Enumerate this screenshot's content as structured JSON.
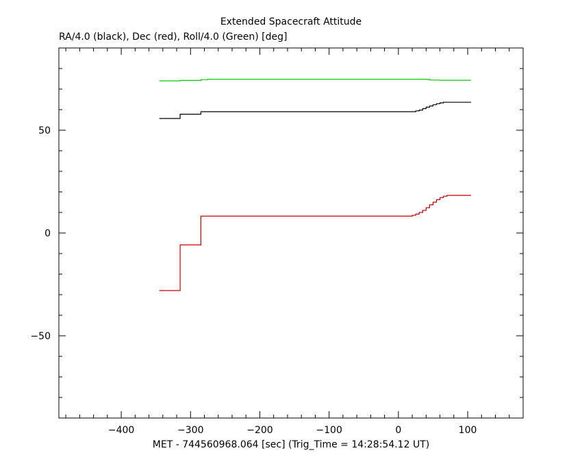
{
  "chart_data": {
    "type": "line",
    "title": "Extended Spacecraft Attitude",
    "subtitle": "RA/4.0 (black), Dec (red), Roll/4.0 (Green) [deg]",
    "xlabel": "MET - 744560968.064 [sec] (Trig_Time = 14:28:54.12 UT)",
    "ylabel": "",
    "xlim": [
      -490,
      180
    ],
    "ylim": [
      -90,
      90
    ],
    "xticks": [
      -400,
      -300,
      -200,
      -100,
      0,
      100
    ],
    "yticks": [
      -50,
      0,
      50
    ],
    "xtick_labels": [
      "−400",
      "−300",
      "−200",
      "−100",
      "0",
      "100"
    ],
    "ytick_labels": [
      "−50",
      "0",
      "50"
    ],
    "x_minor_step": 20,
    "y_minor_step": 10,
    "grid": false,
    "step_lines": true,
    "series": [
      {
        "color": "#00cc00",
        "points": [
          [
            -345,
            74.0
          ],
          [
            -315,
            74.2
          ],
          [
            -285,
            74.6
          ],
          [
            -275,
            74.8
          ],
          [
            0,
            74.8
          ],
          [
            40,
            74.7
          ],
          [
            45,
            74.4
          ],
          [
            60,
            74.3
          ],
          [
            105,
            74.3
          ]
        ]
      },
      {
        "color": "#000000",
        "points": [
          [
            -345,
            55.7
          ],
          [
            -315,
            57.8
          ],
          [
            -285,
            59.0
          ],
          [
            15,
            59.0
          ],
          [
            25,
            59.4
          ],
          [
            30,
            59.8
          ],
          [
            35,
            60.5
          ],
          [
            40,
            61.2
          ],
          [
            45,
            61.8
          ],
          [
            50,
            62.4
          ],
          [
            55,
            62.9
          ],
          [
            60,
            63.3
          ],
          [
            65,
            63.6
          ],
          [
            105,
            63.6
          ]
        ]
      },
      {
        "color": "#cc0000",
        "points": [
          [
            -345,
            -28.0
          ],
          [
            -315,
            -5.8
          ],
          [
            -285,
            8.2
          ],
          [
            15,
            8.2
          ],
          [
            20,
            8.6
          ],
          [
            25,
            9.2
          ],
          [
            30,
            10.0
          ],
          [
            35,
            11.0
          ],
          [
            40,
            12.3
          ],
          [
            45,
            13.7
          ],
          [
            50,
            15.0
          ],
          [
            55,
            16.2
          ],
          [
            60,
            17.2
          ],
          [
            65,
            17.9
          ],
          [
            70,
            18.3
          ],
          [
            105,
            18.3
          ]
        ]
      }
    ]
  }
}
